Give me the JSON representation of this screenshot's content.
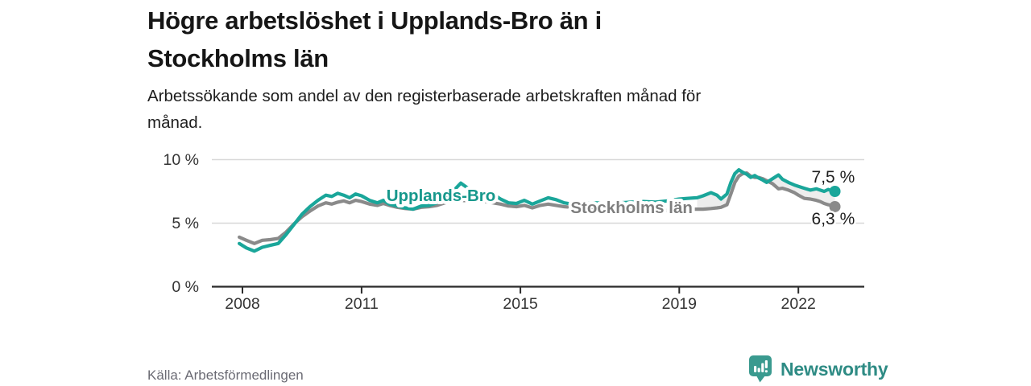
{
  "header": {
    "title_lines": [
      "Högre arbetslöshet i Upplands-Bro än i",
      "Stockholms län"
    ],
    "subtitle_lines": [
      "Arbetssökande som andel av den registerbaserade arbetskraften månad för",
      "månad."
    ]
  },
  "footer": {
    "source": "Källa: Arbetsförmedlingen",
    "brand": "Newsworthy",
    "brand_color": "#2E8B84",
    "logo_icon": "bar-chart-speech-bubble"
  },
  "chart_data": {
    "type": "line",
    "title": "Högre arbetslöshet i Upplands-Bro än i Stockholms län",
    "subtitle": "Arbetssökande som andel av den registerbaserade arbetskraften månad för månad.",
    "unit": "%",
    "grid": "horizontal-only",
    "legend_position": "inline-labels-on-lines",
    "ylim": [
      0,
      10.5
    ],
    "x_axis_year_range": [
      2007.23,
      2023.66
    ],
    "y_ticks": [
      {
        "value": 0,
        "label": "0 %"
      },
      {
        "value": 5,
        "label": "5 %"
      },
      {
        "value": 10,
        "label": "10 %"
      }
    ],
    "x_ticks": [
      {
        "value": 2008,
        "label": "2008"
      },
      {
        "value": 2011,
        "label": "2011"
      },
      {
        "value": 2015,
        "label": "2015"
      },
      {
        "value": 2019,
        "label": "2019"
      },
      {
        "value": 2022,
        "label": "2022"
      }
    ],
    "grid_color": "#d8d8d8",
    "axis_color": "#2b2b2b",
    "tick_label_color": "#333333",
    "diff_fill": {
      "from_year": 2019.45,
      "color": "#ededed"
    },
    "series_labels": [
      {
        "text": "Upplands-Bro",
        "x": 2013.0,
        "y": 7.18,
        "color": "#17988C"
      },
      {
        "text": "Stockholms län",
        "x": 2017.8,
        "y": 6.22,
        "color": "#7E7E7E"
      }
    ],
    "end_labels": [
      {
        "series": "Upplands-Bro",
        "text": "7,5 %",
        "offset": [
          -29,
          -11
        ]
      },
      {
        "series": "Stockholms län",
        "text": "6,3 %",
        "offset": [
          -29,
          22
        ]
      }
    ],
    "series": [
      {
        "name": "Upplands-Bro",
        "color": "#1AA69A",
        "end_value": 7.5,
        "points": [
          [
            2007.92,
            3.4
          ],
          [
            2008.1,
            3.05
          ],
          [
            2008.3,
            2.8
          ],
          [
            2008.5,
            3.1
          ],
          [
            2008.7,
            3.25
          ],
          [
            2008.9,
            3.4
          ],
          [
            2009.1,
            4.1
          ],
          [
            2009.3,
            4.9
          ],
          [
            2009.5,
            5.7
          ],
          [
            2009.7,
            6.3
          ],
          [
            2009.9,
            6.8
          ],
          [
            2010.1,
            7.2
          ],
          [
            2010.25,
            7.1
          ],
          [
            2010.4,
            7.35
          ],
          [
            2010.55,
            7.2
          ],
          [
            2010.7,
            7.0
          ],
          [
            2010.85,
            7.3
          ],
          [
            2011.0,
            7.15
          ],
          [
            2011.2,
            6.8
          ],
          [
            2011.4,
            6.6
          ],
          [
            2011.55,
            6.8
          ],
          [
            2011.7,
            6.5
          ],
          [
            2011.9,
            6.35
          ],
          [
            2012.1,
            6.2
          ],
          [
            2012.3,
            6.1
          ],
          [
            2012.5,
            6.35
          ],
          [
            2012.7,
            6.4
          ],
          [
            2012.9,
            6.6
          ],
          [
            2013.1,
            7.0
          ],
          [
            2013.3,
            7.5
          ],
          [
            2013.5,
            8.15
          ],
          [
            2013.7,
            7.7
          ],
          [
            2013.9,
            7.5
          ],
          [
            2014.1,
            7.45
          ],
          [
            2014.3,
            7.3
          ],
          [
            2014.5,
            6.9
          ],
          [
            2014.7,
            6.6
          ],
          [
            2014.9,
            6.55
          ],
          [
            2015.1,
            6.8
          ],
          [
            2015.3,
            6.5
          ],
          [
            2015.5,
            6.75
          ],
          [
            2015.7,
            7.0
          ],
          [
            2015.9,
            6.85
          ],
          [
            2016.1,
            6.6
          ],
          [
            2016.3,
            6.5
          ],
          [
            2016.6,
            6.55
          ],
          [
            2016.9,
            6.6
          ],
          [
            2017.2,
            6.55
          ],
          [
            2017.5,
            6.6
          ],
          [
            2017.8,
            6.65
          ],
          [
            2018.1,
            6.7
          ],
          [
            2018.4,
            6.65
          ],
          [
            2018.7,
            6.75
          ],
          [
            2019.0,
            6.9
          ],
          [
            2019.2,
            6.95
          ],
          [
            2019.45,
            7.0
          ],
          [
            2019.6,
            7.15
          ],
          [
            2019.8,
            7.4
          ],
          [
            2019.95,
            7.2
          ],
          [
            2020.05,
            6.9
          ],
          [
            2020.2,
            7.3
          ],
          [
            2020.3,
            8.2
          ],
          [
            2020.4,
            8.9
          ],
          [
            2020.5,
            9.2
          ],
          [
            2020.6,
            9.0
          ],
          [
            2020.7,
            8.85
          ],
          [
            2020.8,
            8.6
          ],
          [
            2020.9,
            8.75
          ],
          [
            2021.0,
            8.55
          ],
          [
            2021.1,
            8.4
          ],
          [
            2021.2,
            8.2
          ],
          [
            2021.35,
            8.5
          ],
          [
            2021.5,
            8.8
          ],
          [
            2021.6,
            8.45
          ],
          [
            2021.75,
            8.2
          ],
          [
            2021.9,
            8.0
          ],
          [
            2022.0,
            7.9
          ],
          [
            2022.15,
            7.75
          ],
          [
            2022.3,
            7.6
          ],
          [
            2022.45,
            7.7
          ],
          [
            2022.55,
            7.6
          ],
          [
            2022.65,
            7.5
          ],
          [
            2022.75,
            7.65
          ],
          [
            2022.85,
            7.55
          ],
          [
            2022.92,
            7.5
          ]
        ]
      },
      {
        "name": "Stockholms län",
        "color": "#8A8A8A",
        "end_value": 6.3,
        "points": [
          [
            2007.92,
            3.9
          ],
          [
            2008.1,
            3.65
          ],
          [
            2008.3,
            3.4
          ],
          [
            2008.5,
            3.65
          ],
          [
            2008.7,
            3.7
          ],
          [
            2008.9,
            3.8
          ],
          [
            2009.1,
            4.3
          ],
          [
            2009.3,
            4.95
          ],
          [
            2009.5,
            5.5
          ],
          [
            2009.7,
            5.95
          ],
          [
            2009.9,
            6.35
          ],
          [
            2010.1,
            6.6
          ],
          [
            2010.25,
            6.5
          ],
          [
            2010.4,
            6.65
          ],
          [
            2010.55,
            6.75
          ],
          [
            2010.7,
            6.6
          ],
          [
            2010.85,
            6.8
          ],
          [
            2011.0,
            6.7
          ],
          [
            2011.2,
            6.5
          ],
          [
            2011.4,
            6.4
          ],
          [
            2011.55,
            6.55
          ],
          [
            2011.7,
            6.4
          ],
          [
            2011.9,
            6.25
          ],
          [
            2012.1,
            6.15
          ],
          [
            2012.3,
            6.1
          ],
          [
            2012.5,
            6.25
          ],
          [
            2012.7,
            6.3
          ],
          [
            2012.9,
            6.4
          ],
          [
            2013.1,
            6.6
          ],
          [
            2013.3,
            6.7
          ],
          [
            2013.5,
            6.8
          ],
          [
            2013.7,
            6.75
          ],
          [
            2013.9,
            6.7
          ],
          [
            2014.1,
            6.7
          ],
          [
            2014.3,
            6.6
          ],
          [
            2014.5,
            6.5
          ],
          [
            2014.7,
            6.35
          ],
          [
            2014.9,
            6.3
          ],
          [
            2015.1,
            6.4
          ],
          [
            2015.3,
            6.2
          ],
          [
            2015.5,
            6.4
          ],
          [
            2015.7,
            6.5
          ],
          [
            2015.9,
            6.4
          ],
          [
            2016.1,
            6.3
          ],
          [
            2016.3,
            6.25
          ],
          [
            2016.6,
            6.2
          ],
          [
            2016.9,
            6.1
          ],
          [
            2017.2,
            6.05
          ],
          [
            2017.5,
            6.05
          ],
          [
            2017.8,
            6.0
          ],
          [
            2018.1,
            6.0
          ],
          [
            2018.4,
            5.95
          ],
          [
            2018.7,
            6.0
          ],
          [
            2019.0,
            6.05
          ],
          [
            2019.2,
            6.1
          ],
          [
            2019.45,
            6.1
          ],
          [
            2019.6,
            6.1
          ],
          [
            2019.8,
            6.15
          ],
          [
            2019.95,
            6.2
          ],
          [
            2020.05,
            6.25
          ],
          [
            2020.2,
            6.45
          ],
          [
            2020.3,
            7.3
          ],
          [
            2020.4,
            8.2
          ],
          [
            2020.5,
            8.7
          ],
          [
            2020.6,
            8.9
          ],
          [
            2020.7,
            8.95
          ],
          [
            2020.8,
            8.7
          ],
          [
            2020.9,
            8.6
          ],
          [
            2021.0,
            8.6
          ],
          [
            2021.1,
            8.5
          ],
          [
            2021.2,
            8.35
          ],
          [
            2021.35,
            8.1
          ],
          [
            2021.5,
            7.7
          ],
          [
            2021.6,
            7.75
          ],
          [
            2021.75,
            7.6
          ],
          [
            2021.9,
            7.4
          ],
          [
            2022.0,
            7.2
          ],
          [
            2022.15,
            6.95
          ],
          [
            2022.3,
            6.9
          ],
          [
            2022.45,
            6.8
          ],
          [
            2022.55,
            6.7
          ],
          [
            2022.65,
            6.55
          ],
          [
            2022.75,
            6.45
          ],
          [
            2022.85,
            6.4
          ],
          [
            2022.92,
            6.3
          ]
        ]
      }
    ]
  }
}
